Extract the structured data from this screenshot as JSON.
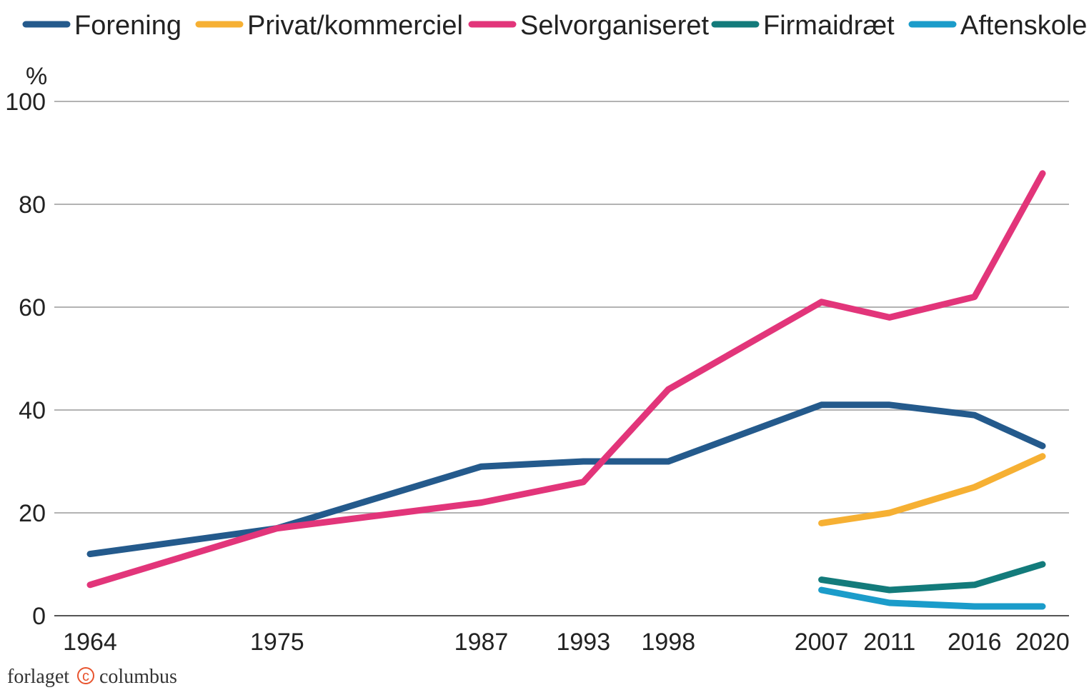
{
  "chart_data": {
    "type": "line",
    "title": "",
    "xlabel": "",
    "ylabel": "%",
    "ylim": [
      0,
      100
    ],
    "yticks": [
      0,
      20,
      40,
      60,
      80,
      100
    ],
    "x": [
      1964,
      1975,
      1987,
      1993,
      1998,
      2007,
      2011,
      2016,
      2020
    ],
    "xlim": [
      1964,
      2020
    ],
    "grid": true,
    "legend_position": "top",
    "series": [
      {
        "name": "Forening",
        "color": "#245a8c",
        "points": [
          [
            1964,
            12
          ],
          [
            1975,
            17
          ],
          [
            1987,
            29
          ],
          [
            1993,
            30
          ],
          [
            1998,
            30
          ],
          [
            2007,
            41
          ],
          [
            2011,
            41
          ],
          [
            2016,
            39
          ],
          [
            2020,
            33
          ]
        ]
      },
      {
        "name": "Privat/kommerciel",
        "color": "#f6b033",
        "points": [
          [
            2007,
            18
          ],
          [
            2011,
            20
          ],
          [
            2016,
            25
          ],
          [
            2020,
            31
          ]
        ]
      },
      {
        "name": "Selvorganiseret",
        "color": "#e2357a",
        "points": [
          [
            1964,
            6
          ],
          [
            1975,
            17
          ],
          [
            1987,
            22
          ],
          [
            1993,
            26
          ],
          [
            1998,
            44
          ],
          [
            2007,
            61
          ],
          [
            2011,
            58
          ],
          [
            2016,
            62
          ],
          [
            2020,
            86
          ]
        ]
      },
      {
        "name": "Firmaidræt",
        "color": "#137b7b",
        "points": [
          [
            2007,
            7
          ],
          [
            2011,
            5
          ],
          [
            2016,
            6
          ],
          [
            2020,
            10
          ]
        ]
      },
      {
        "name": "Aftenskole",
        "color": "#1b9cca",
        "points": [
          [
            2007,
            5
          ],
          [
            2011,
            2.5
          ],
          [
            2016,
            1.8
          ],
          [
            2020,
            1.8
          ]
        ]
      }
    ]
  },
  "publisher": {
    "left": "forlaget",
    "logo": "c",
    "right": "columbus"
  }
}
